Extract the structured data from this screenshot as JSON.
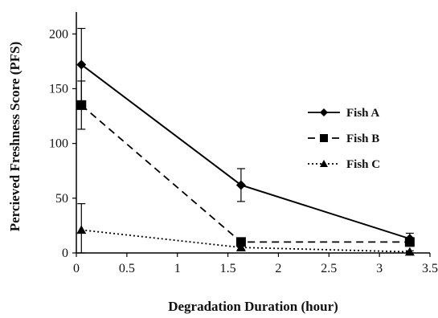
{
  "chart_data": {
    "type": "line",
    "xlabel": "Degradation Duration (hour)",
    "ylabel": "Percieved Freshness Score (PFS)",
    "xlim": [
      0,
      3.5
    ],
    "ylim": [
      0,
      220
    ],
    "xticks": [
      "0",
      "0.5",
      "1",
      "1.5",
      "2",
      "2.5",
      "3",
      "3.5"
    ],
    "yticks": [
      "0",
      "50",
      "100",
      "150",
      "200"
    ],
    "xtick_values": [
      0,
      0.5,
      1,
      1.5,
      2,
      2.5,
      3,
      3.5
    ],
    "ytick_values": [
      0,
      50,
      100,
      150,
      200
    ],
    "grid": false,
    "legend_position": "right",
    "series": [
      {
        "name": "Fish A",
        "x": [
          0.05,
          1.63,
          3.3
        ],
        "y": [
          172,
          62,
          13
        ],
        "err": [
          33,
          15,
          5
        ],
        "marker": "diamond",
        "line": "solid",
        "color": "#000000"
      },
      {
        "name": "Fish B",
        "x": [
          0.05,
          1.63,
          3.3
        ],
        "y": [
          135,
          10,
          10
        ],
        "err": [
          22,
          2,
          3
        ],
        "marker": "square",
        "line": "dashed",
        "color": "#000000"
      },
      {
        "name": "Fish C",
        "x": [
          0.05,
          1.63,
          3.3
        ],
        "y": [
          21,
          5,
          1
        ],
        "err": [
          24,
          2,
          1
        ],
        "marker": "triangle",
        "line": "dotted",
        "color": "#000000"
      }
    ]
  }
}
